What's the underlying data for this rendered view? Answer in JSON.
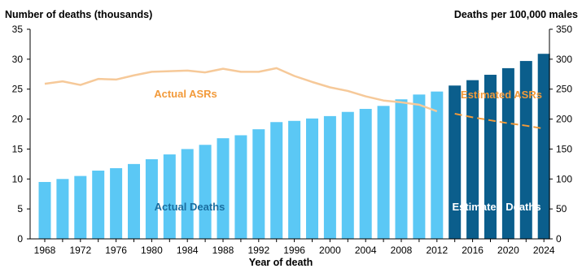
{
  "chart_data": {
    "type": "bar",
    "left_axis_title": "Number of deaths (thousands)",
    "right_axis_title": "Deaths per 100,000 males",
    "xlabel": "Year of death",
    "x_tick_labels": [
      "1968",
      "1972",
      "1976",
      "1980",
      "1984",
      "1988",
      "1992",
      "1996",
      "2000",
      "2004",
      "2008",
      "2012",
      "2016",
      "2020",
      "2024"
    ],
    "y_left_ticks": [
      "0",
      "5",
      "10",
      "15",
      "20",
      "25",
      "30",
      "35"
    ],
    "y_right_ticks": [
      "0",
      "50",
      "100",
      "150",
      "200",
      "250",
      "300",
      "350"
    ],
    "ylim_left": [
      0,
      35
    ],
    "ylim_right": [
      0,
      350
    ],
    "years": [
      1968,
      1970,
      1972,
      1974,
      1976,
      1978,
      1980,
      1982,
      1984,
      1986,
      1988,
      1990,
      1992,
      1994,
      1996,
      1998,
      2000,
      2002,
      2004,
      2006,
      2008,
      2010,
      2012,
      2014,
      2016,
      2018,
      2020,
      2022,
      2024
    ],
    "deaths_series": [
      {
        "name": "Actual Deaths",
        "start_year": 1968,
        "end_year": 2012,
        "values": [
          9.5,
          10.0,
          10.5,
          11.4,
          11.8,
          12.5,
          13.3,
          14.1,
          15.0,
          15.7,
          16.8,
          17.3,
          18.3,
          19.5,
          19.7,
          20.1,
          20.5,
          21.2,
          21.7,
          22.2,
          23.3,
          24.1,
          24.6
        ]
      },
      {
        "name": "Estimated Deaths",
        "start_year": 2014,
        "end_year": 2024,
        "values": [
          25.6,
          26.5,
          27.4,
          28.5,
          29.7,
          30.9
        ]
      }
    ],
    "asr_series": [
      {
        "name": "Actual ASRs",
        "style": "solid",
        "x": [
          1968,
          1970,
          1972,
          1974,
          1976,
          1978,
          1980,
          1982,
          1984,
          1986,
          1988,
          1990,
          1992,
          1994,
          1996,
          1998,
          2000,
          2002,
          2004,
          2006,
          2008,
          2010,
          2012
        ],
        "values": [
          259,
          263,
          257,
          267,
          266,
          273,
          279,
          280,
          281,
          278,
          284,
          279,
          279,
          285,
          272,
          262,
          253,
          247,
          238,
          231,
          228,
          224,
          213
        ]
      },
      {
        "name": "Estimated ASRs",
        "style": "dashed",
        "x": [
          2014,
          2016,
          2018,
          2020,
          2022,
          2024
        ],
        "values": [
          209,
          203,
          198,
          193,
          189,
          184
        ]
      }
    ],
    "colors": {
      "actual_deaths": "#5bc8f5",
      "estimated_deaths": "#0b5e8c",
      "asr_line": "#f6c999",
      "asr_label": "#f29a3a",
      "estimated_asr_dash": "#f29a3a",
      "actual_deaths_label": "#1a6ea0",
      "estimated_deaths_label": "#ffffff"
    }
  }
}
